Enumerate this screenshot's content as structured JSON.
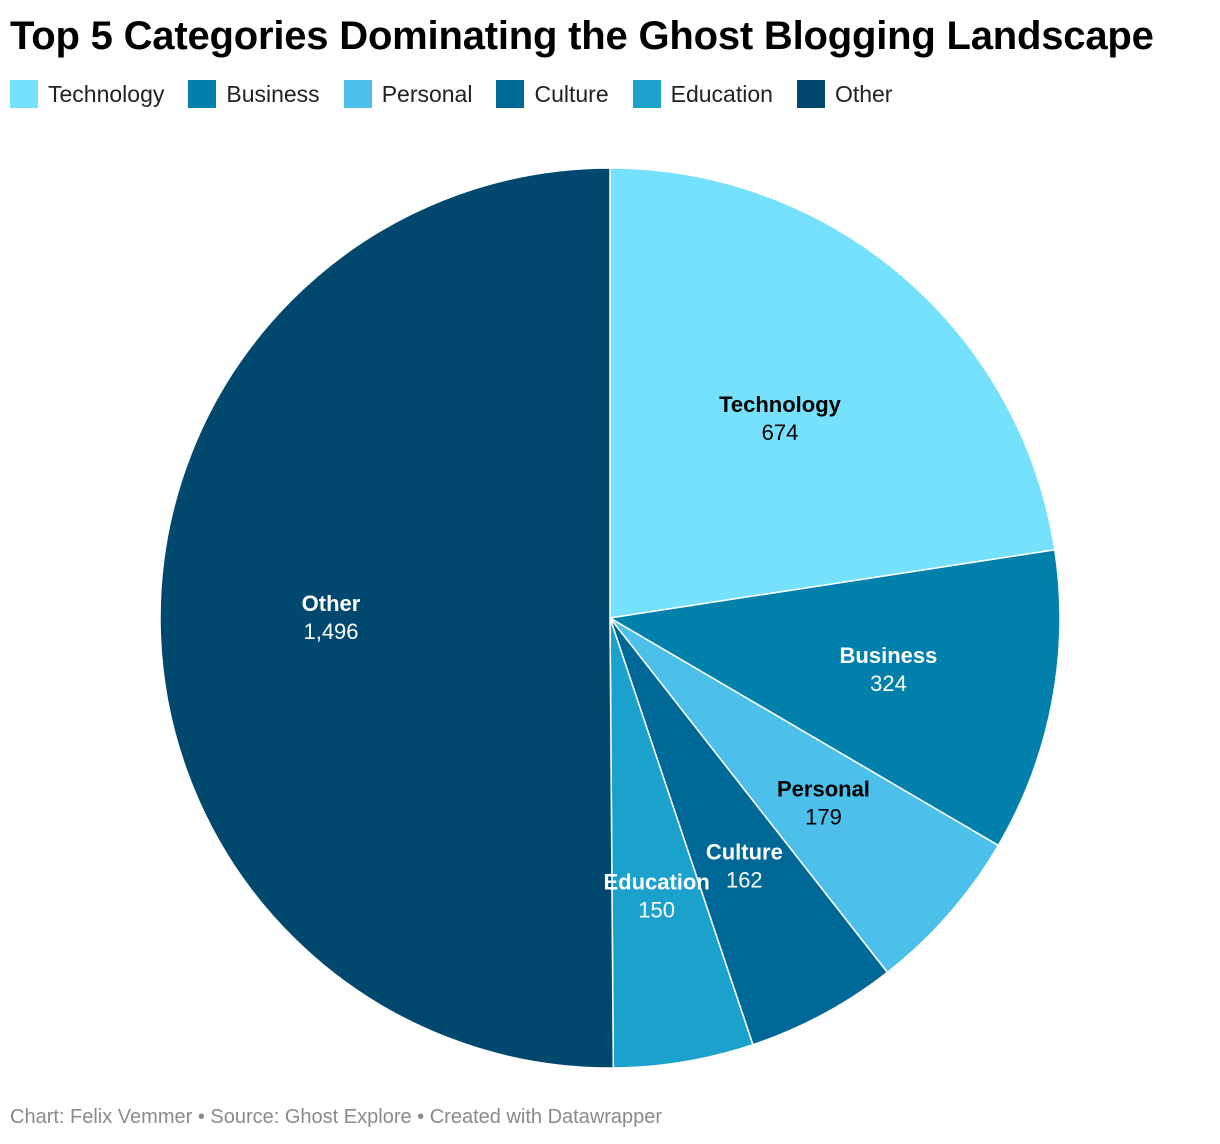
{
  "title": "Top 5 Categories Dominating the Ghost Blogging Landscape",
  "footer": {
    "credit": "Chart: Felix Vemmer",
    "source": "Source: Ghost Explore",
    "tool": "Created with Datawrapper",
    "separator": " • "
  },
  "chart_data": {
    "type": "pie",
    "title": "Top 5 Categories Dominating the Ghost Blogging Landscape",
    "legend_position": "top-left",
    "categories": [
      "Technology",
      "Business",
      "Personal",
      "Culture",
      "Education",
      "Other"
    ],
    "values": [
      674,
      324,
      179,
      162,
      150,
      1496
    ],
    "value_labels": [
      "674",
      "324",
      "179",
      "162",
      "150",
      "1,496"
    ],
    "colors": [
      "#76e1fc",
      "#0180ac",
      "#4cc0eb",
      "#006896",
      "#1aa2cd",
      "#00486e"
    ],
    "label_colors": [
      "#000000",
      "#ffffff",
      "#000000",
      "#ffffff",
      "#ffffff",
      "#ffffff"
    ]
  }
}
